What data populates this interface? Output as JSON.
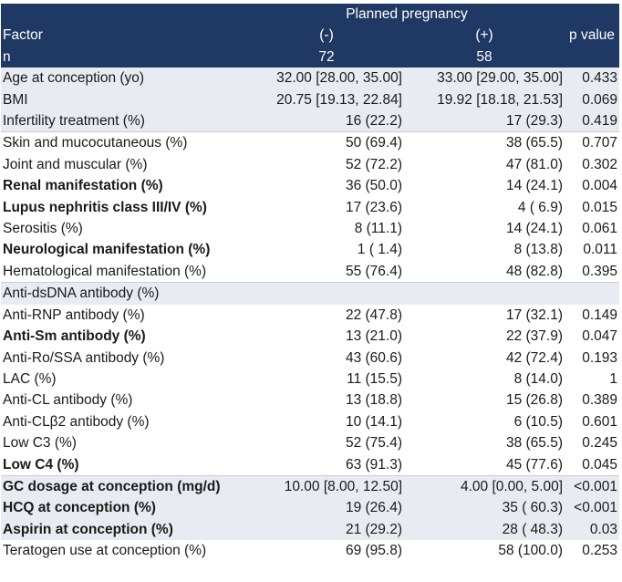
{
  "header": {
    "group_label": "Planned pregnancy",
    "factor_label": "Factor",
    "neg_label": "(-)",
    "pos_label": "(+)",
    "p_label": "p value",
    "n_label": "n",
    "n_neg": "72",
    "n_pos": "58"
  },
  "rows": [
    {
      "factor": "Age at conception (yo)",
      "neg": "32.00 [28.00, 35.00]",
      "pos": "33.00 [29.00, 35.00]",
      "p": "0.433"
    },
    {
      "factor": "BMI",
      "neg": "20.75 [19.13, 22.84]",
      "pos": "19.92 [18.18, 21.53]",
      "p": "0.069"
    },
    {
      "factor": "Infertility treatment (%)",
      "neg": "16 (22.2)",
      "pos": "17 (29.3)",
      "p": "0.419"
    },
    {
      "factor": "Skin and mucocutaneous (%)",
      "neg": "50 (69.4)",
      "pos": "38 (65.5)",
      "p": "0.707"
    },
    {
      "factor": "Joint and muscular (%)",
      "neg": "52 (72.2)",
      "pos": "47 (81.0)",
      "p": "0.302"
    },
    {
      "factor": "Renal manifestation (%)",
      "neg": "36 (50.0)",
      "pos": "14 (24.1)",
      "p": "0.004"
    },
    {
      "factor": "Lupus nephritis class III/IV (%)",
      "neg": "17 (23.6)",
      "pos": "4 ( 6.9)",
      "p": "0.015"
    },
    {
      "factor": "Serositis (%)",
      "neg": "8 (11.1)",
      "pos": "14 (24.1)",
      "p": "0.061"
    },
    {
      "factor": "Neurological manifestation (%)",
      "neg": "1 ( 1.4)",
      "pos": "8 (13.8)",
      "p": "0.011"
    },
    {
      "factor": "Hematological manifestation (%)",
      "neg": "55 (76.4)",
      "pos": "48 (82.8)",
      "p": "0.395"
    },
    {
      "factor": "Anti-dsDNA antibody (%)",
      "neg": "",
      "pos": "",
      "p": ""
    },
    {
      "factor": "Anti-RNP antibody (%)",
      "neg": "22 (47.8)",
      "pos": "17 (32.1)",
      "p": "0.149"
    },
    {
      "factor": "Anti-Sm antibody (%)",
      "neg": "13 (21.0)",
      "pos": "22 (37.9)",
      "p": "0.047"
    },
    {
      "factor": "Anti-Ro/SSA antibody (%)",
      "neg": "43 (60.6)",
      "pos": "42 (72.4)",
      "p": "0.193"
    },
    {
      "factor": "LAC (%)",
      "neg": "11 (15.5)",
      "pos": "8 (14.0)",
      "p": "1"
    },
    {
      "factor": "Anti-CL antibody (%)",
      "neg": "13 (18.8)",
      "pos": "15 (26.8)",
      "p": "0.389"
    },
    {
      "factor": "Anti-CLβ2 antibody (%)",
      "neg": "10 (14.1)",
      "pos": "6 (10.5)",
      "p": "0.601"
    },
    {
      "factor": "Low C3 (%)",
      "neg": "52 (75.4)",
      "pos": "38 (65.5)",
      "p": "0.245"
    },
    {
      "factor": "Low C4 (%)",
      "neg": "63 (91.3)",
      "pos": "45 (77.6)",
      "p": "0.045"
    },
    {
      "factor": "GC dosage at conception (mg/d)",
      "neg": "10.00 [8.00, 12.50]",
      "pos": "4.00 [0.00, 5.00]",
      "p": "<0.001"
    },
    {
      "factor": "HCQ at conception (%)",
      "neg": "19 (26.4)",
      "pos": "35 ( 60.3)",
      "p": "<0.001"
    },
    {
      "factor": "Aspirin at conception (%)",
      "neg": "21 (29.2)",
      "pos": "28 ( 48.3)",
      "p": "0.03"
    },
    {
      "factor": "Teratogen use at conception (%)",
      "neg": "69 (95.8)",
      "pos": "58 (100.0)",
      "p": "0.253"
    }
  ]
}
